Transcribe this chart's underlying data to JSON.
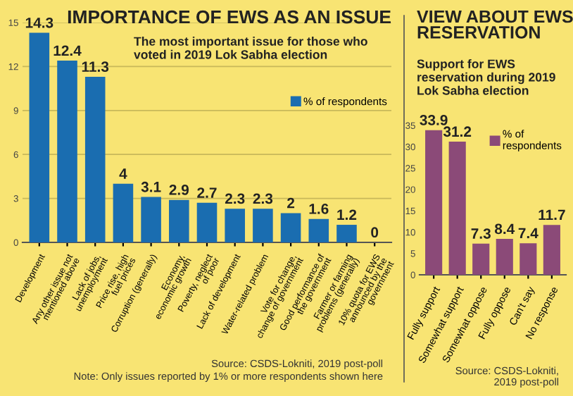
{
  "chart_data": [
    {
      "type": "bar",
      "title": "IMPORTANCE OF EWS AS AN ISSUE",
      "subtitle": "The most important issue for those who\nvoted in 2019 Lok Sabha election",
      "categories": [
        "Development",
        "Any other issue not\nmentioned above",
        "Lack of jobs,\nunemployment",
        "Price rise, high\nfuel prices",
        "Corruption (generally)",
        "Economy,\neconomic growth",
        "Poverty, neglect\nof poor",
        "Lack of development",
        "Water-related problem",
        "Vote for change,\nchange of government",
        "Good performance of\nthe government",
        "Farmer or farming\nproblems (generally)",
        "10% quota for EWS\nannounced by the\ngovernment"
      ],
      "series": [
        {
          "name": "% of respondents",
          "color": "#1a6db0",
          "values": [
            14.3,
            12.4,
            11.3,
            4,
            3.1,
            2.9,
            2.7,
            2.3,
            2.3,
            2,
            1.6,
            1.2,
            0
          ]
        }
      ],
      "ylim": [
        0,
        15
      ],
      "yticks": [
        0,
        3,
        6,
        9,
        12,
        15
      ],
      "grid": "y",
      "legend": "top right",
      "data_labels": true,
      "annotations": [
        "Source: CSDS-Lokniti, 2019 post-poll",
        "Note: Only issues reported by 1% or more respondents shown here"
      ]
    },
    {
      "type": "bar",
      "title": "VIEW ABOUT EWS\nRESERVATION",
      "subtitle": "Support for EWS\nreservation during 2019\nLok Sabha election",
      "categories": [
        "Fully support",
        "Somewhat support",
        "Somewhat oppose",
        "Fully oppose",
        "Can't say",
        "No response"
      ],
      "series": [
        {
          "name": "% of\nrespondents",
          "color": "#8b4a78",
          "values": [
            33.9,
            31.2,
            7.3,
            8.4,
            7.4,
            11.7
          ]
        }
      ],
      "ylim": [
        0,
        35
      ],
      "yticks": [
        0,
        5,
        10,
        15,
        20,
        25,
        30,
        35
      ],
      "legend": "top right",
      "data_labels": true,
      "annotations": [
        "Source: CSDS-Lokniti,\n2019 post-poll"
      ]
    }
  ]
}
